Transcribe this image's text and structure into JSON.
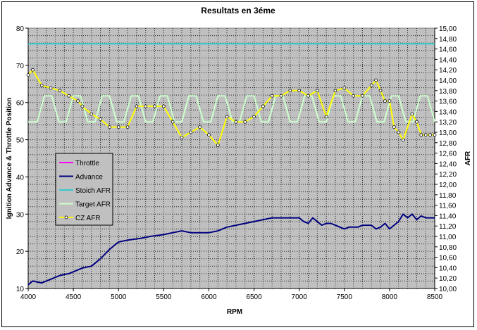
{
  "chart_data": {
    "type": "line",
    "title": "Resultats en 3éme",
    "xlabel": "RPM",
    "ylabel_left": "Ignition Advance & Throttle Position",
    "ylabel_right": "AFR",
    "xlim": [
      4000,
      8500
    ],
    "ylim_left": [
      10,
      80
    ],
    "ylim_right": [
      10.0,
      15.0
    ],
    "x_ticks": [
      "4000",
      "4500",
      "5000",
      "5500",
      "6000",
      "6500",
      "7000",
      "7500",
      "8000",
      "8500"
    ],
    "y_left_ticks": [
      "10",
      "20",
      "30",
      "40",
      "50",
      "60",
      "70",
      "80"
    ],
    "y_right_ticks": [
      "10,00",
      "10,20",
      "10,40",
      "10,60",
      "10,80",
      "11,00",
      "11,20",
      "11,40",
      "11,60",
      "11,80",
      "12,00",
      "12,20",
      "12,40",
      "12,60",
      "12,80",
      "13,00",
      "13,20",
      "13,40",
      "13,60",
      "13,80",
      "14,00",
      "14,20",
      "14,40",
      "14,60",
      "14,80",
      "15,00"
    ],
    "grid": true,
    "legend_position": "left-middle",
    "plot_background": "#c0c0c0",
    "series": [
      {
        "name": "Throttle",
        "color": "#ff00ff",
        "axis": "left",
        "x": [],
        "values": []
      },
      {
        "name": "Advance",
        "color": "#000080",
        "axis": "left",
        "x": [
          4000,
          4050,
          4150,
          4250,
          4350,
          4450,
          4600,
          4700,
          4800,
          4900,
          5000,
          5100,
          5250,
          5350,
          5500,
          5600,
          5700,
          5800,
          5900,
          6000,
          6100,
          6200,
          6300,
          6400,
          6500,
          6600,
          6700,
          6800,
          6900,
          7000,
          7050,
          7100,
          7150,
          7200,
          7250,
          7300,
          7350,
          7400,
          7450,
          7500,
          7550,
          7600,
          7650,
          7700,
          7750,
          7800,
          7850,
          7900,
          7950,
          8000,
          8050,
          8100,
          8150,
          8200,
          8250,
          8300,
          8350,
          8400,
          8450,
          8500
        ],
        "values": [
          11,
          12,
          11.5,
          12.5,
          13.5,
          14,
          15.5,
          16,
          18,
          20.5,
          22.5,
          23,
          23.5,
          24,
          24.5,
          25,
          25.5,
          25,
          25,
          25,
          25.5,
          26.5,
          27,
          27.5,
          28,
          28.5,
          29,
          29,
          29,
          29,
          28,
          27.5,
          29,
          28,
          27,
          27.5,
          27.5,
          27,
          26.5,
          26,
          26.5,
          26.5,
          26.5,
          27,
          27,
          27,
          26,
          26.5,
          27.5,
          26,
          27,
          28,
          30,
          29,
          30,
          28.5,
          29.5,
          29,
          29,
          29
        ]
      },
      {
        "name": "Stoich AFR",
        "color": "#33cccc",
        "axis": "right",
        "x": [
          4000,
          8500
        ],
        "values": [
          14.7,
          14.7
        ]
      },
      {
        "name": "Target AFR",
        "color": "#ccffcc",
        "axis": "right",
        "x": [
          4000,
          4100,
          4180,
          4260,
          4340,
          4420,
          4500,
          4580,
          4660,
          4740,
          4820,
          4900,
          4980,
          5060,
          5140,
          5220,
          5300,
          5380,
          5460,
          5540,
          5620,
          5700,
          5780,
          5860,
          5940,
          6020,
          6100,
          6180,
          6260,
          6340,
          6420,
          6500,
          6580,
          6660,
          6740,
          6820,
          6900,
          6980,
          7060,
          7140,
          7220,
          7300,
          7380,
          7460,
          7540,
          7620,
          7700,
          7780,
          7860,
          7940,
          8020,
          8100,
          8180,
          8260,
          8340,
          8420,
          8500
        ],
        "values": [
          13.2,
          13.2,
          13.7,
          13.7,
          13.2,
          13.2,
          13.7,
          13.7,
          13.2,
          13.2,
          13.7,
          13.7,
          13.2,
          13.2,
          13.7,
          13.7,
          13.2,
          13.2,
          13.7,
          13.7,
          13.2,
          13.2,
          13.7,
          13.7,
          13.2,
          13.2,
          13.7,
          13.7,
          13.2,
          13.2,
          13.7,
          13.7,
          13.2,
          13.2,
          13.7,
          13.7,
          13.2,
          13.2,
          13.7,
          13.7,
          13.2,
          13.2,
          13.7,
          13.7,
          13.2,
          13.2,
          13.7,
          13.7,
          13.2,
          13.2,
          13.7,
          13.7,
          13.2,
          13.2,
          13.7,
          13.7,
          13.2
        ]
      },
      {
        "name": "CZ AFR",
        "color": "#ffff00",
        "axis": "right",
        "x": [
          4000,
          4050,
          4150,
          4250,
          4350,
          4450,
          4550,
          4600,
          4700,
          4800,
          4900,
          5000,
          5100,
          5200,
          5300,
          5400,
          5500,
          5600,
          5700,
          5800,
          5900,
          6000,
          6100,
          6200,
          6300,
          6400,
          6500,
          6600,
          6700,
          6800,
          6900,
          7000,
          7100,
          7200,
          7300,
          7400,
          7500,
          7600,
          7700,
          7800,
          7850,
          7900,
          7950,
          8000,
          8050,
          8100,
          8150,
          8250,
          8300,
          8350,
          8400,
          8450,
          8500
        ],
        "values": [
          14.1,
          14.2,
          13.9,
          13.85,
          13.8,
          13.7,
          13.6,
          13.5,
          13.35,
          13.25,
          13.1,
          13.1,
          13.1,
          13.5,
          13.5,
          13.5,
          13.5,
          13.2,
          12.9,
          13.0,
          13.1,
          12.95,
          12.75,
          13.3,
          13.2,
          13.2,
          13.3,
          13.5,
          13.7,
          13.7,
          13.8,
          13.8,
          13.7,
          13.8,
          13.3,
          13.8,
          13.85,
          13.7,
          13.7,
          13.9,
          14.0,
          13.8,
          13.6,
          13.6,
          13.1,
          13.0,
          12.85,
          13.35,
          13.2,
          12.95,
          12.95,
          12.95,
          12.95
        ]
      }
    ]
  }
}
